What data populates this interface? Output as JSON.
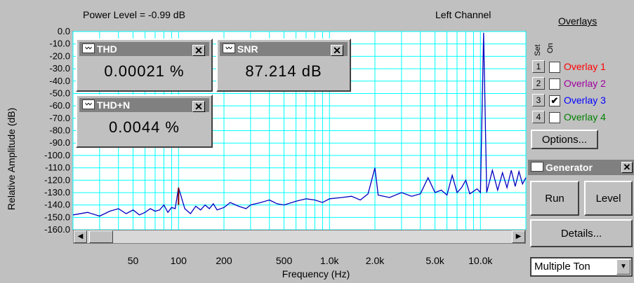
{
  "header": {
    "power_level": "Power Level = -0.99 dB",
    "channel": "Left Channel"
  },
  "plot": {
    "ylabel": "Relative Amplitude (dB)",
    "xlabel": "Frequency (Hz)",
    "y_ticks": [
      "0.0",
      "-10.0",
      "-20.0",
      "-30.0",
      "-40.0",
      "-50.0",
      "-60.0",
      "-70.0",
      "-80.0",
      "-90.0",
      "-100.0",
      "-110.0",
      "-120.0",
      "-130.0",
      "-140.0",
      "-150.0",
      "-160.0"
    ],
    "x_ticks": [
      "50",
      "100",
      "200",
      "500",
      "1.0k",
      "2.0k",
      "5.0k",
      "10.0k"
    ],
    "grid_color": "#00ffff",
    "trace_color": "#0000c0",
    "peak_color": "#800000"
  },
  "chart_data": {
    "type": "line",
    "xlabel": "Frequency (Hz)",
    "ylabel": "Relative Amplitude (dB)",
    "x_scale": "log",
    "xlim": [
      20,
      20000
    ],
    "ylim": [
      -160,
      0
    ],
    "grid": true,
    "series": [
      {
        "x": [
          20,
          25,
          30,
          35,
          40,
          45,
          50,
          55,
          60,
          65,
          70,
          75,
          80,
          85,
          90,
          95,
          100,
          110,
          120,
          130,
          140,
          150,
          160,
          170,
          180,
          200,
          220,
          250,
          280,
          300,
          350,
          400,
          450,
          500,
          600,
          700,
          800,
          900,
          1000,
          1200,
          1400,
          1600,
          1800,
          2000,
          2100,
          2500,
          3000,
          3500,
          4000,
          4500,
          5000,
          5500,
          6000,
          6500,
          7000,
          7500,
          8000,
          8500,
          9000,
          9500,
          10000,
          10500,
          11000,
          12000,
          13000,
          14000,
          15000,
          16000,
          17000,
          18000,
          19000,
          20000
        ],
        "y": [
          -148,
          -146,
          -149,
          -145,
          -143,
          -147,
          -144,
          -148,
          -146,
          -143,
          -145,
          -144,
          -140,
          -146,
          -142,
          -143,
          -126,
          -143,
          -147,
          -141,
          -144,
          -140,
          -143,
          -139,
          -144,
          -142,
          -138,
          -141,
          -143,
          -140,
          -138,
          -136,
          -139,
          -140,
          -137,
          -135,
          -136,
          -138,
          -135,
          -134,
          -133,
          -136,
          -131,
          -110,
          -132,
          -134,
          -130,
          -133,
          -131,
          -118,
          -130,
          -128,
          -132,
          -116,
          -130,
          -126,
          -120,
          -131,
          -129,
          -127,
          -130,
          -0.99,
          -130,
          -112,
          -128,
          -114,
          -126,
          -112,
          -125,
          -113,
          -123,
          -118
        ]
      }
    ]
  },
  "meters": {
    "thd": {
      "title": "THD",
      "value": "0.00021 %"
    },
    "snr": {
      "title": "SNR",
      "value": "87.214 dB"
    },
    "thdn": {
      "title": "THD+N",
      "value": "0.0044 %"
    }
  },
  "overlays": {
    "title": "Overlays",
    "set_header": "Set",
    "on_header": "On",
    "items": [
      {
        "num": "1",
        "label": "Overlay 1",
        "checked": "",
        "color": "#ff0000"
      },
      {
        "num": "2",
        "label": "Overlay 2",
        "checked": "",
        "color": "#a000a0"
      },
      {
        "num": "3",
        "label": "Overlay 3",
        "checked": "✔",
        "color": "#0000ff"
      },
      {
        "num": "4",
        "label": "Overlay 4",
        "checked": "",
        "color": "#008000"
      }
    ],
    "options_label": "Options..."
  },
  "generator": {
    "title": "Generator",
    "run_label": "Run",
    "level_label": "Level",
    "details_label": "Details...",
    "waveform": "Multiple Ton"
  }
}
